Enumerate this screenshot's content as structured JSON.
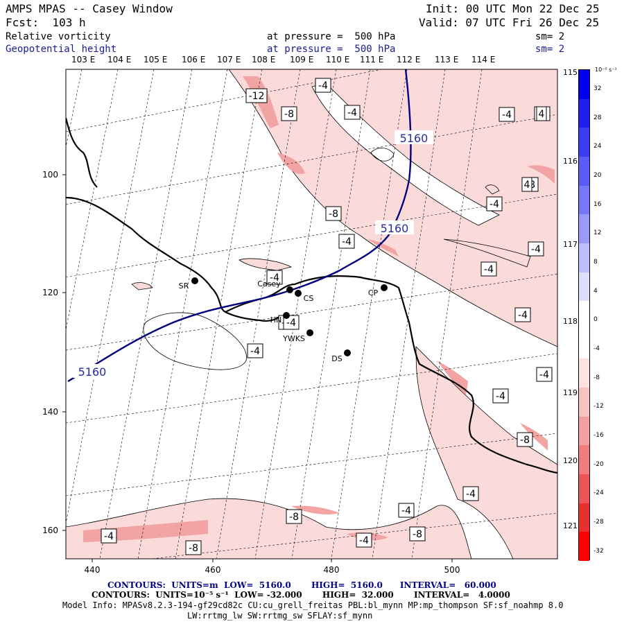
{
  "header": {
    "title": "AMPS MPAS -- Casey Window",
    "init": "Init: 00 UTC Mon 22 Dec 25",
    "fcst": "Fcst:  103 h",
    "valid": "Valid: 07 UTC Fri 26 Dec 25",
    "field1": "Relative vorticity",
    "field1_level": "at pressure =  500 hPa",
    "field1_sm": "sm= 2",
    "field2": "Geopotential height",
    "field2_level": "at pressure =  500 hPa",
    "field2_sm": "sm= 2"
  },
  "map": {
    "lon_labels_top": [
      "103 E",
      "104 E",
      "105 E",
      "106 E",
      "107 E",
      "108 E",
      "109 E",
      "110 E",
      "111 E",
      "112 E",
      "113 E",
      "114 E"
    ],
    "lon_labels_right": [
      "115 E",
      "116 E",
      "117 E",
      "118 E",
      "119 E",
      "120 E",
      "121 E"
    ],
    "x_ticks": [
      "440",
      "460",
      "480",
      "500"
    ],
    "y_ticks": [
      "100",
      "120",
      "140",
      "160"
    ],
    "stations": [
      {
        "name": "SR"
      },
      {
        "name": "Casey"
      },
      {
        "name": "CS"
      },
      {
        "name": "CP"
      },
      {
        "name": "HN"
      },
      {
        "name": "YWKS"
      },
      {
        "name": "DS"
      }
    ],
    "height_labels": [
      "5160",
      "5160",
      "5160"
    ],
    "vort_labels": [
      "-12",
      "-8",
      "-4",
      "-4",
      "-4",
      "-4",
      "-8",
      "-4",
      "-8",
      "-4",
      "-4",
      "-4",
      "-4",
      "-4",
      "-4",
      "-4",
      "-4",
      "-4",
      "-8",
      "-4",
      "-4",
      "-8",
      "-8",
      "-4",
      "-8",
      "-4",
      "-4",
      "4",
      "4"
    ]
  },
  "colorbar": {
    "unit": "10⁻⁵ s⁻¹",
    "ticks": [
      "32",
      "28",
      "24",
      "20",
      "16",
      "12",
      "8",
      "4",
      "0",
      "-4",
      "-8",
      "-12",
      "-16",
      "-20",
      "-24",
      "-28",
      "-32"
    ],
    "colors": [
      "#0000ee",
      "#1f1ff0",
      "#3c3cf2",
      "#5a5af4",
      "#7878f6",
      "#9a9af8",
      "#bdbdfb",
      "#dedefd",
      "#ffffff",
      "#ffffff",
      "#fde2e2",
      "#f9c2c2",
      "#f4a0a0",
      "#f07c7c",
      "#ec5656",
      "#e83030",
      "#ff0000"
    ]
  },
  "footer": {
    "line1": "CONTOURS:  UNITS=m  LOW=  5160.0       HIGH=  5160.0      INTERVAL=   60.000",
    "line2": "CONTOURS:  UNITS=10⁻⁵ s⁻¹  LOW= -32.000       HIGH=  32.000       INTERVAL=   4.0000",
    "line3": "Model Info: MPASv8.2.3-194-gf29cd82c CU:cu_grell_freitas PBL:bl_mynn MP:mp_thompson SF:sf_noahmp 8.0",
    "line4": "LW:rrtmg_lw SW:rrtmg_sw SFLAY:sf_mynn"
  }
}
